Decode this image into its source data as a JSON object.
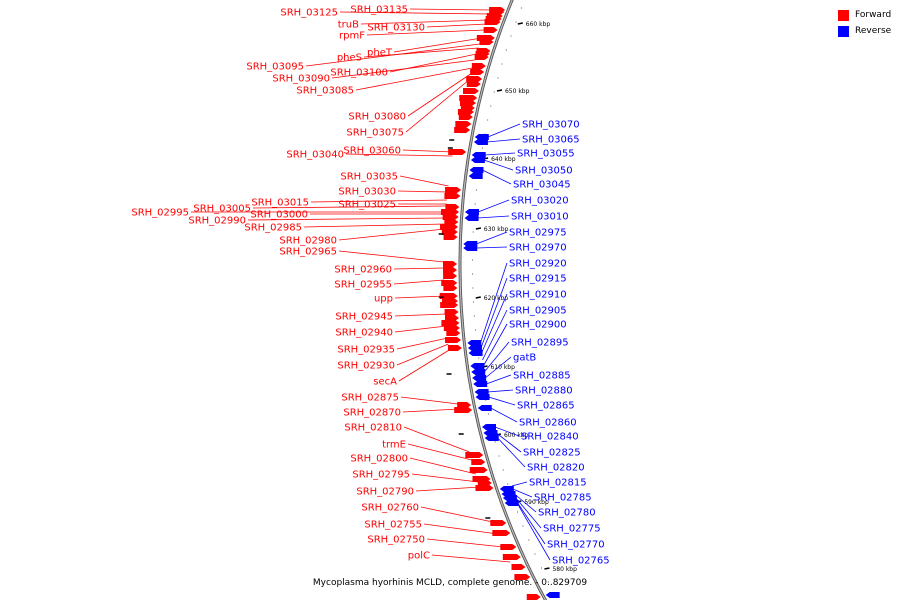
{
  "colors": {
    "forward": "#ff0000",
    "reverse": "#0000ff",
    "backbone": "#888888",
    "tick": "#000000"
  },
  "legend": {
    "forward_label": "Forward",
    "reverse_label": "Reverse"
  },
  "caption": "Mycoplasma hyorhinis MCLD, complete genome. - 0..829709",
  "ruler": [
    {
      "label": "660 kbp"
    },
    {
      "label": "650 kbp"
    },
    {
      "label": "640 kbp"
    },
    {
      "label": "630 kbp"
    },
    {
      "label": "620 kbp"
    },
    {
      "label": "610 kbp"
    },
    {
      "label": "600 kbp"
    },
    {
      "label": "590 kbp"
    },
    {
      "label": "580 kbp"
    }
  ],
  "forward_labels": [
    "SRH_03135",
    "SRH_03125",
    "truB",
    "SRH_03130",
    "rpmF",
    "pheT",
    "SRH_03095",
    "pheS",
    "SRH_03100",
    "SRH_03090",
    "SRH_03085",
    "SRH_03080",
    "SRH_03075",
    "SRH_03060",
    "SRH_03040",
    "SRH_03035",
    "SRH_03030",
    "SRH_03015",
    "SRH_03005",
    "SRH_03025",
    "SRH_02995",
    "SRH_03000",
    "SRH_02990",
    "SRH_02985",
    "SRH_02980",
    "SRH_02965",
    "SRH_02960",
    "SRH_02955",
    "upp",
    "SRH_02945",
    "SRH_02940",
    "SRH_02935",
    "SRH_02930",
    "secA",
    "SRH_02875",
    "SRH_02870",
    "SRH_02810",
    "trmE",
    "SRH_02800",
    "SRH_02795",
    "SRH_02790",
    "SRH_02760",
    "SRH_02755",
    "SRH_02750",
    "polC"
  ],
  "reverse_labels": [
    "SRH_03070",
    "SRH_03065",
    "SRH_03055",
    "SRH_03050",
    "SRH_03045",
    "SRH_03020",
    "SRH_03010",
    "SRH_02975",
    "SRH_02970",
    "SRH_02920",
    "SRH_02915",
    "SRH_02910",
    "SRH_02905",
    "SRH_02900",
    "SRH_02895",
    "gatB",
    "SRH_02885",
    "SRH_02880",
    "SRH_02865",
    "SRH_02860",
    "SRH_02840",
    "SRH_02825",
    "SRH_02820",
    "SRH_02815",
    "SRH_02785",
    "SRH_02780",
    "SRH_02775",
    "SRH_02770",
    "SRH_02765"
  ]
}
